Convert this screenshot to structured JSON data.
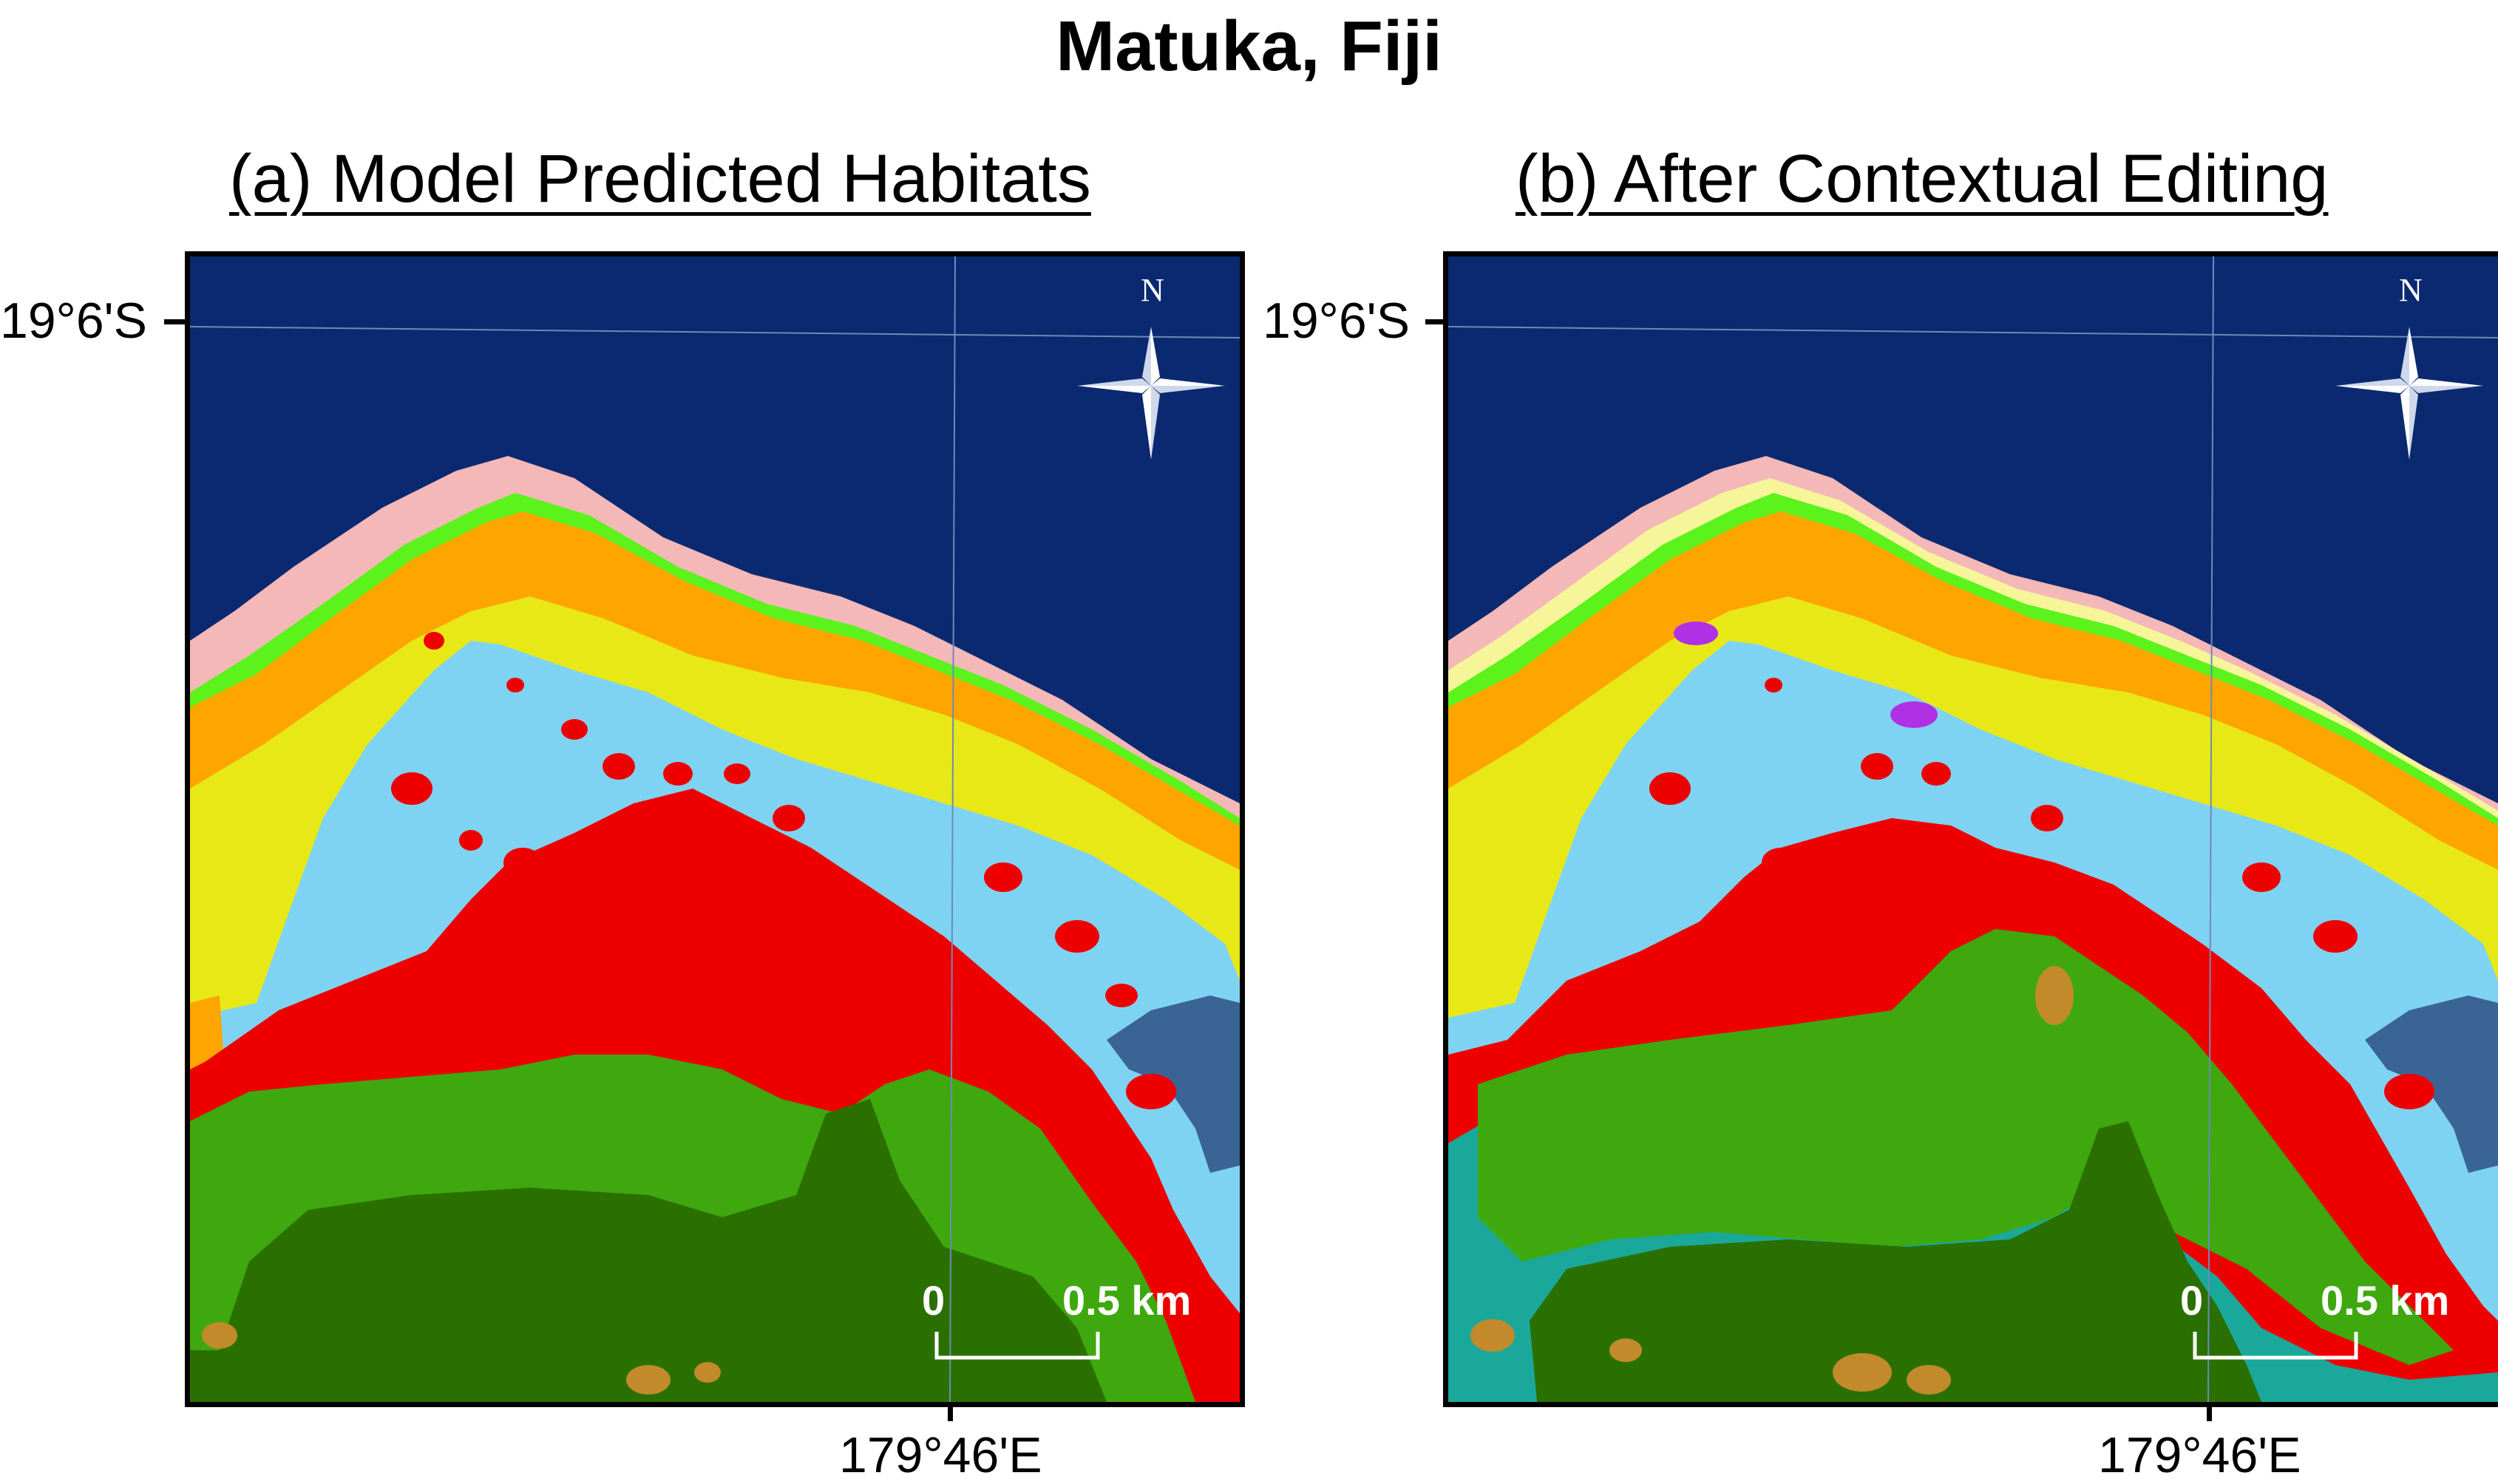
{
  "title": "Matuka, Fiji",
  "panels": [
    {
      "id": "a",
      "subtitle": "(a) Model Predicted Habitats",
      "lat_label": "19°6'S",
      "lon_label": "179°46'E",
      "north_label": "N",
      "scale": {
        "start": "0",
        "end": "0.5 km"
      }
    },
    {
      "id": "b",
      "subtitle": "(b) After Contextual Editing",
      "lat_label": "19°6'S",
      "lon_label": "179°46'E",
      "north_label": "N",
      "scale": {
        "start": "0",
        "end": "0.5 km"
      }
    }
  ],
  "colors": {
    "deep_water": "#0a2970",
    "reef_crest_pink": "#f4b8b8",
    "reef_flat_green": "#5cf21c",
    "orange_zone": "#ffa500",
    "yellow_zone": "#e8e817",
    "lagoon_light_blue": "#7fd3f2",
    "coral_red": "#ee0000",
    "seagrass_green": "#3ea80e",
    "dark_green_land": "#2a7000",
    "steel_blue_channel": "#3a6494",
    "teal_zone": "#1aa89a",
    "brown_patches": "#c28a2a",
    "pale_yellow": "#f7f59a",
    "purple_patches": "#b030e6"
  }
}
